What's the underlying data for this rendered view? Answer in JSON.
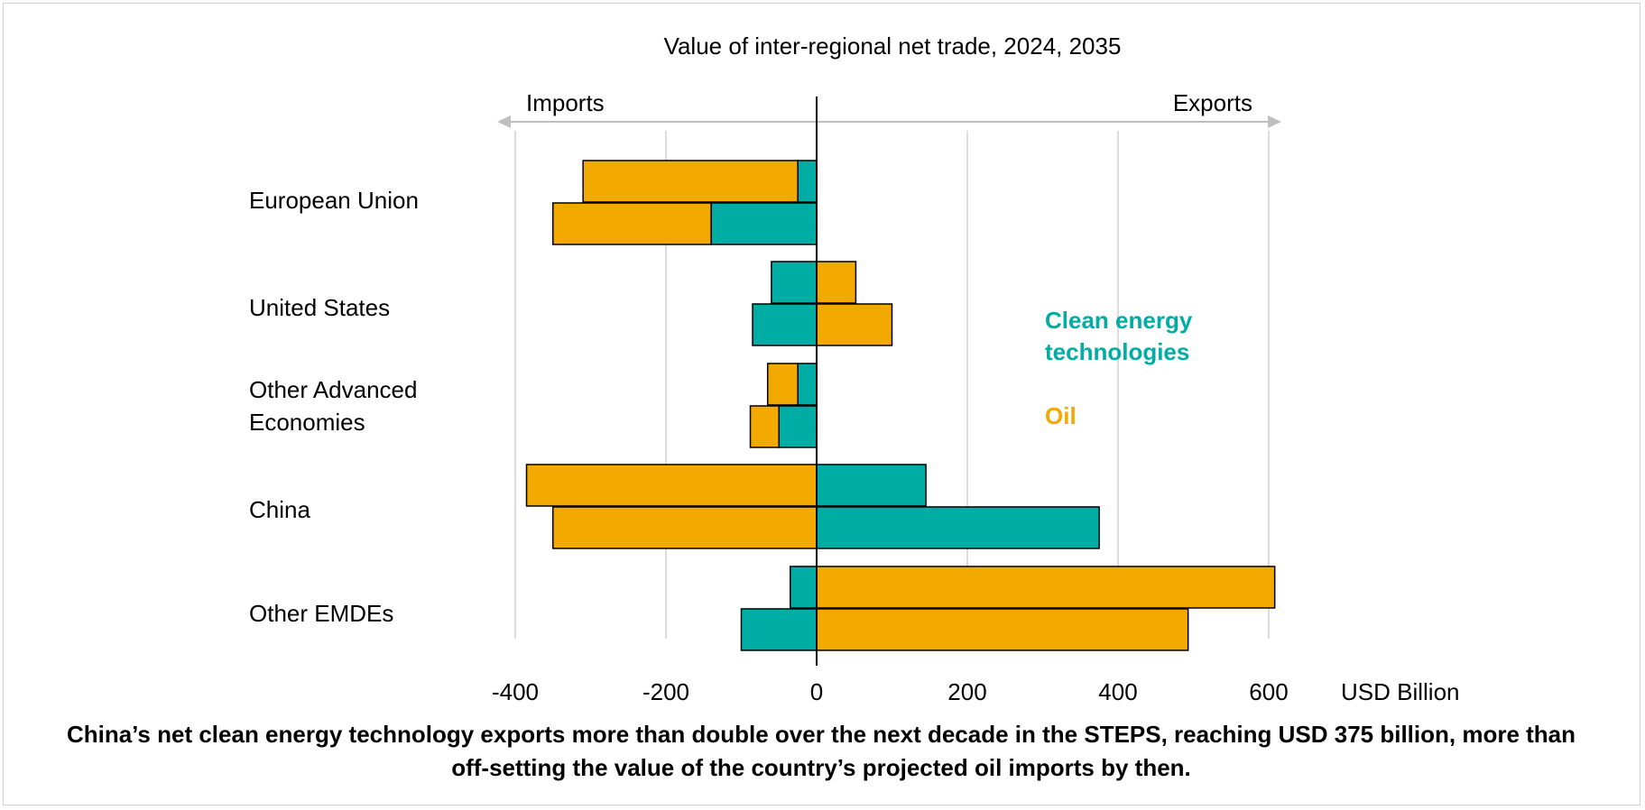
{
  "chart_data": {
    "type": "bar",
    "orientation": "horizontal",
    "subtitle": "Value of inter-regional net trade, 2024, 2035",
    "arrow_labels": {
      "left": "Imports",
      "right": "Exports"
    },
    "xlabel": "USD Billion",
    "xlim": [
      -400,
      600
    ],
    "xticks": [
      -400,
      -200,
      0,
      200,
      400,
      600
    ],
    "categories": [
      "European Union",
      "United States",
      "Other Advanced Economies",
      "China",
      "Other EMDEs"
    ],
    "years": [
      "2024",
      "2035"
    ],
    "series": [
      {
        "name": "Clean energy technologies",
        "color": "#00ada4",
        "values_2024": [
          -25,
          -60,
          -25,
          145,
          -35
        ],
        "values_2035": [
          -140,
          -85,
          -50,
          375,
          -100
        ]
      },
      {
        "name": "Oil",
        "color": "#f2a900",
        "values_2024": [
          -285,
          52,
          -40,
          -385,
          608
        ],
        "values_2035": [
          -210,
          100,
          -38,
          -350,
          493
        ]
      }
    ],
    "legend": {
      "placement": "inside-right",
      "entries": [
        {
          "text": "Clean energy technologies",
          "color": "#00ada4"
        },
        {
          "text": "Oil",
          "color": "#f2a900"
        }
      ]
    },
    "grid": true
  },
  "caption": "China’s net clean energy technology exports more than double over the next decade in the STEPS, reaching USD 375 billion, more than off-setting the value of the country’s projected oil imports by then.",
  "colors": {
    "axis": "#000000",
    "grid": "#d0d0d0",
    "arrow": "#bfbfbf",
    "frame": "#cfcfcf"
  }
}
